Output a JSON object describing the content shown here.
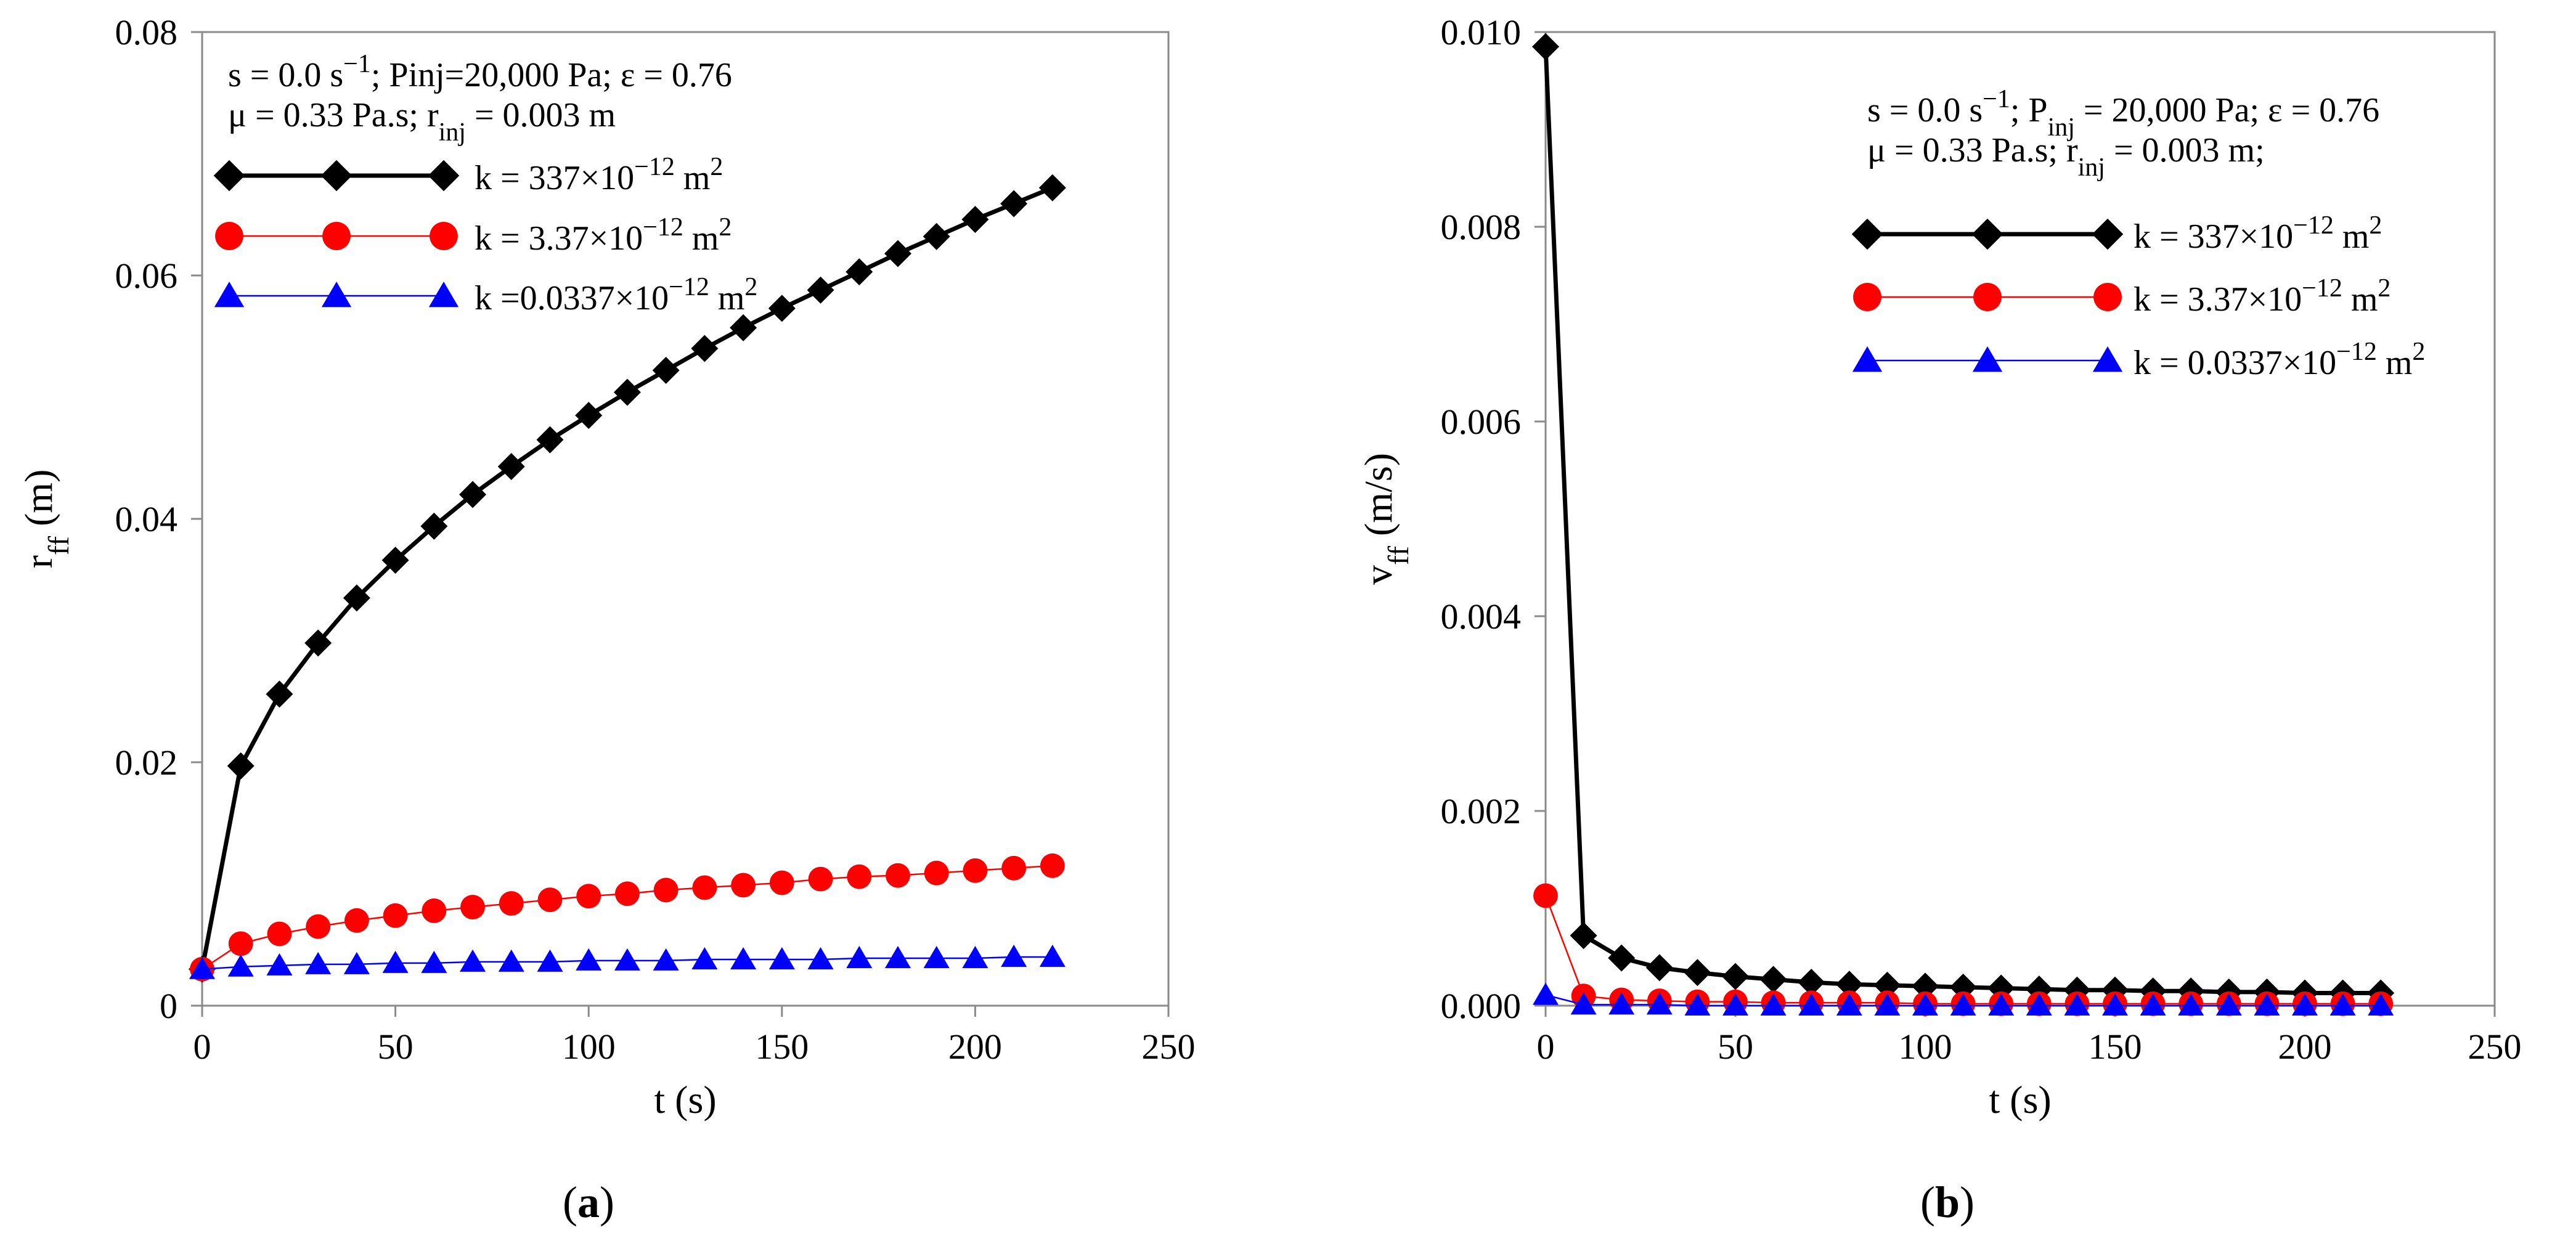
{
  "chart_data": [
    {
      "type": "line",
      "panel": "a",
      "caption": "(a)",
      "caption_open": "(",
      "caption_letter": "a",
      "caption_close": ")",
      "xlabel": "t (s)",
      "ylabel_main": "r",
      "ylabel_sub": "ff",
      "ylabel_unit": " (m)",
      "xlim": [
        0,
        250
      ],
      "ylim": [
        0,
        0.08
      ],
      "xticks": [
        "0",
        "50",
        "100",
        "150",
        "200",
        "250"
      ],
      "xtick_values": [
        0,
        50,
        100,
        150,
        200,
        250
      ],
      "yticks": [
        "0",
        "0.02",
        "0.04",
        "0.06",
        "0.08"
      ],
      "ytick_values": [
        0,
        0.02,
        0.04,
        0.06,
        0.08
      ],
      "annotation_lines": [
        [
          {
            "t": "s = 0.0 s"
          },
          {
            "t": "−1",
            "sup": true
          },
          {
            "t": "; Pinj=20,000 Pa;  ε = 0.76"
          }
        ],
        [
          {
            "t": "μ = 0.33 Pa.s; r"
          },
          {
            "t": "inj",
            "sub": true
          },
          {
            "t": " = 0.003 m"
          }
        ]
      ],
      "x": [
        0,
        10,
        20,
        30,
        40,
        50,
        60,
        70,
        80,
        90,
        100,
        110,
        120,
        130,
        140,
        150,
        160,
        170,
        180,
        190,
        200,
        210,
        220
      ],
      "series": [
        {
          "name": "k = 337×10−12 m2",
          "legend_parts": [
            {
              "t": "k = 337×10"
            },
            {
              "t": "−12",
              "sup": true
            },
            {
              "t": " m"
            },
            {
              "t": "2",
              "sup": true
            }
          ],
          "color": "#000000",
          "marker": "diamond",
          "values": [
            0.003,
            0.0197,
            0.0256,
            0.0298,
            0.0335,
            0.0366,
            0.0394,
            0.042,
            0.0443,
            0.0465,
            0.0485,
            0.0504,
            0.0522,
            0.054,
            0.0557,
            0.0573,
            0.0588,
            0.0603,
            0.0618,
            0.0632,
            0.0646,
            0.0659,
            0.0672
          ]
        },
        {
          "name": "k = 3.37×10−12 m2",
          "legend_parts": [
            {
              "t": "k = 3.37×10"
            },
            {
              "t": "−12",
              "sup": true
            },
            {
              "t": " m"
            },
            {
              "t": "2",
              "sup": true
            }
          ],
          "color": "#ff0000",
          "marker": "circle",
          "values": [
            0.003,
            0.0051,
            0.0059,
            0.0065,
            0.007,
            0.0074,
            0.0078,
            0.0081,
            0.0084,
            0.0087,
            0.009,
            0.0092,
            0.0095,
            0.0097,
            0.0099,
            0.0101,
            0.0104,
            0.0106,
            0.0107,
            0.0109,
            0.0111,
            0.0113,
            0.0115
          ]
        },
        {
          "name": "k =0.0337×10−12 m2",
          "legend_parts": [
            {
              "t": "k =0.0337×10"
            },
            {
              "t": "−12",
              "sup": true
            },
            {
              "t": " m"
            },
            {
              "t": "2",
              "sup": true
            }
          ],
          "color": "#0000ff",
          "marker": "triangle",
          "values": [
            0.003,
            0.0032,
            0.0033,
            0.0034,
            0.0034,
            0.0035,
            0.0035,
            0.0036,
            0.0036,
            0.0036,
            0.0037,
            0.0037,
            0.0037,
            0.0038,
            0.0038,
            0.0038,
            0.0038,
            0.0039,
            0.0039,
            0.0039,
            0.0039,
            0.004,
            0.004
          ]
        }
      ]
    },
    {
      "type": "line",
      "panel": "b",
      "caption": "(b)",
      "caption_open": "(",
      "caption_letter": "b",
      "caption_close": ")",
      "xlabel": "t (s)",
      "ylabel_main": "v",
      "ylabel_sub": "ff",
      "ylabel_unit": " (m/s)",
      "xlim": [
        0,
        250
      ],
      "ylim": [
        0,
        0.01
      ],
      "xticks": [
        "0",
        "50",
        "100",
        "150",
        "200",
        "250"
      ],
      "xtick_values": [
        0,
        50,
        100,
        150,
        200,
        250
      ],
      "yticks": [
        "0.000",
        "0.002",
        "0.004",
        "0.006",
        "0.008",
        "0.010"
      ],
      "ytick_values": [
        0,
        0.002,
        0.004,
        0.006,
        0.008,
        0.01
      ],
      "annotation_lines": [
        [
          {
            "t": "s = 0.0 s"
          },
          {
            "t": "−1",
            "sup": true
          },
          {
            "t": "; P"
          },
          {
            "t": "inj",
            "sub": true
          },
          {
            "t": " = 20,000 Pa; ε = 0.76"
          }
        ],
        [
          {
            "t": " μ = 0.33 Pa.s; r"
          },
          {
            "t": "inj",
            "sub": true
          },
          {
            "t": " = 0.003 m;"
          }
        ]
      ],
      "x": [
        0,
        10,
        20,
        30,
        40,
        50,
        60,
        70,
        80,
        90,
        100,
        110,
        120,
        130,
        140,
        150,
        160,
        170,
        180,
        190,
        200,
        210,
        220
      ],
      "series": [
        {
          "name": "k = 337×10−12 m2",
          "legend_parts": [
            {
              "t": "k = 337×10"
            },
            {
              "t": "−12",
              "sup": true
            },
            {
              "t": " m"
            },
            {
              "t": "2",
              "sup": true
            }
          ],
          "color": "#000000",
          "marker": "diamond",
          "values": [
            0.00985,
            0.00072,
            0.00049,
            0.00039,
            0.00034,
            0.0003,
            0.00027,
            0.00024,
            0.00022,
            0.00021,
            0.0002,
            0.00019,
            0.00018,
            0.00017,
            0.00016,
            0.00016,
            0.00015,
            0.00015,
            0.00014,
            0.00014,
            0.00013,
            0.00013,
            0.00013
          ]
        },
        {
          "name": "k = 3.37×10−12 m2",
          "legend_parts": [
            {
              "t": "k = 3.37×10"
            },
            {
              "t": "−12",
              "sup": true
            },
            {
              "t": " m"
            },
            {
              "t": "2",
              "sup": true
            }
          ],
          "color": "#ff0000",
          "marker": "circle",
          "values": [
            0.00113,
            0.0001,
            6e-05,
            5e-05,
            4e-05,
            4e-05,
            3e-05,
            3e-05,
            3e-05,
            3e-05,
            2e-05,
            2e-05,
            2e-05,
            2e-05,
            2e-05,
            2e-05,
            2e-05,
            2e-05,
            2e-05,
            2e-05,
            2e-05,
            2e-05,
            2e-05
          ]
        },
        {
          "name": "k = 0.0337×10−12 m2",
          "legend_parts": [
            {
              "t": "k = 0.0337×10"
            },
            {
              "t": "−12",
              "sup": true
            },
            {
              "t": " m"
            },
            {
              "t": "2",
              "sup": true
            }
          ],
          "color": "#0000ff",
          "marker": "triangle",
          "values": [
            0.00011,
            1e-05,
            1e-05,
            1e-05,
            0.0,
            0.0,
            0.0,
            0.0,
            0.0,
            0.0,
            0.0,
            0.0,
            0.0,
            0.0,
            0.0,
            0.0,
            0.0,
            0.0,
            0.0,
            0.0,
            0.0,
            0.0,
            0.0
          ]
        }
      ]
    }
  ]
}
